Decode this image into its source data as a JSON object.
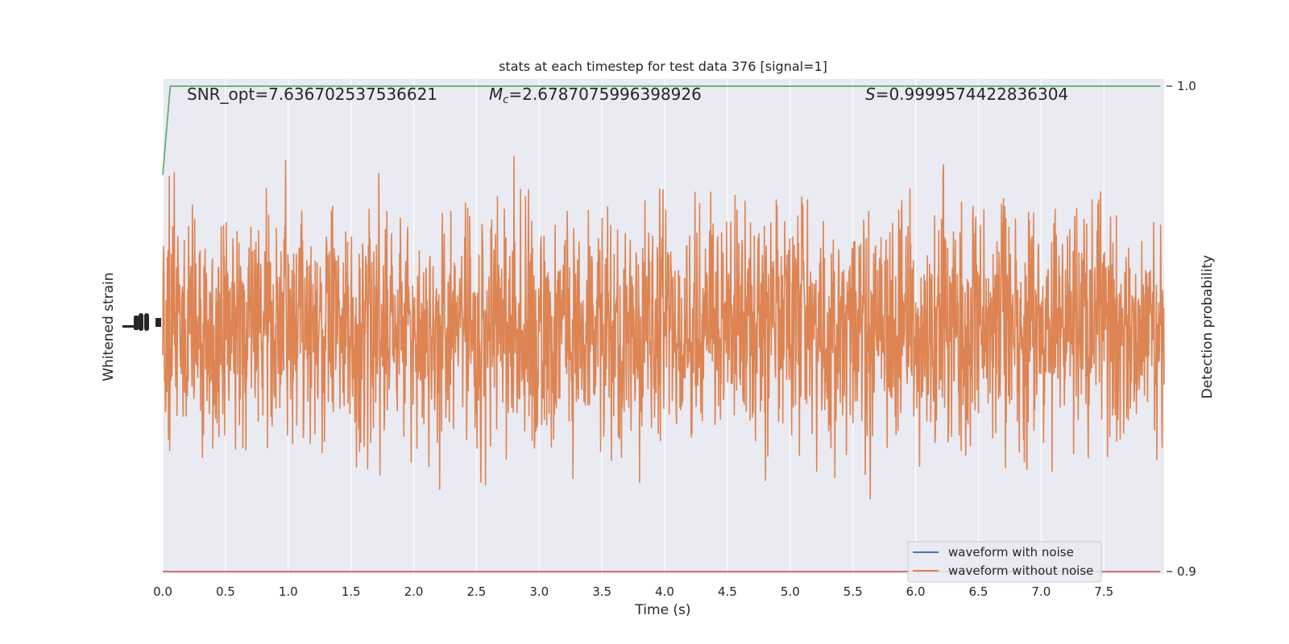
{
  "chart_data": {
    "type": "line",
    "title": "stats at each timestep for test data 376 [signal=1]",
    "xlabel": "Time (s)",
    "ylabel_left": "Whitened strain",
    "ylabel_right": "Detection probability",
    "xlim": [
      0,
      7.98
    ],
    "x_ticks": [
      "0.0",
      "0.5",
      "1.0",
      "1.5",
      "2.0",
      "2.5",
      "3.0",
      "3.5",
      "4.0",
      "4.5",
      "5.0",
      "5.5",
      "6.0",
      "6.5",
      "7.0",
      "7.5"
    ],
    "right_ylim": [
      0.8995,
      1.0015
    ],
    "right_ticks": [
      "1.0",
      "0.9"
    ],
    "annotations": {
      "snr": "SNR_opt=7.636702537536621",
      "mc_symbol": "M",
      "mc_sub": "c",
      "mc_value": "=2.6787075996398926",
      "s_symbol": "S",
      "s_value": "=0.9999574422836304"
    },
    "legend": {
      "placement": "lower-right",
      "entries": [
        "waveform with noise",
        "waveform without noise"
      ]
    },
    "series": [
      {
        "name": "waveform with noise",
        "color": "#4c72b0",
        "role": "left-axis"
      },
      {
        "name": "waveform without noise",
        "color": "#dd8452",
        "role": "left-axis",
        "amplitude_range": [
          -0.97,
          0.97
        ]
      },
      {
        "role": "detection-probability",
        "color": "#55a868",
        "x": [
          0,
          0.06,
          7.95
        ],
        "y": [
          0.9817,
          1.0,
          1.0
        ]
      },
      {
        "role": "threshold",
        "color": "#c44e52",
        "x": [
          0,
          7.95
        ],
        "y": [
          0.9,
          0.9
        ]
      }
    ],
    "grid": true,
    "background": "#eaeaf2"
  }
}
